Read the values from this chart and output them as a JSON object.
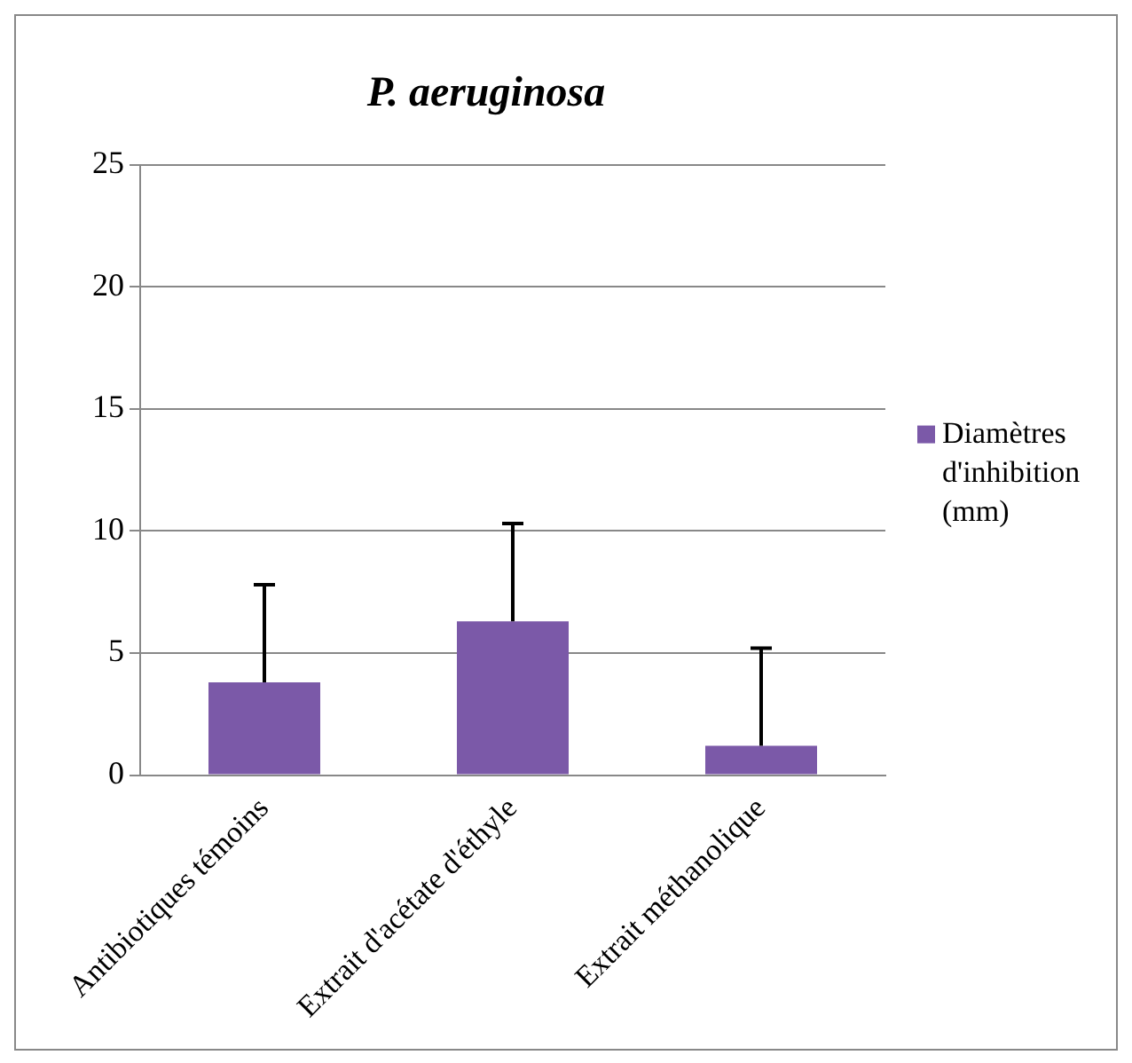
{
  "chart_data": {
    "type": "bar",
    "title": "P. aeruginosa",
    "categories": [
      "Antibiotiques témoins",
      "Extrait d'acétate d'éthyle",
      "Extrait méthanolique"
    ],
    "series": [
      {
        "name": "Diamètres d'inhibition (mm)",
        "color": "#7b59a8",
        "values": [
          3.8,
          6.3,
          1.2
        ],
        "errors": [
          [
            3.8,
            7.8
          ],
          [
            6.3,
            10.3
          ],
          [
            1.2,
            5.2
          ]
        ]
      }
    ],
    "ylim": [
      0,
      25
    ],
    "yticks": [
      0,
      5,
      10,
      15,
      20,
      25
    ],
    "grid": "y",
    "legend": "right"
  }
}
